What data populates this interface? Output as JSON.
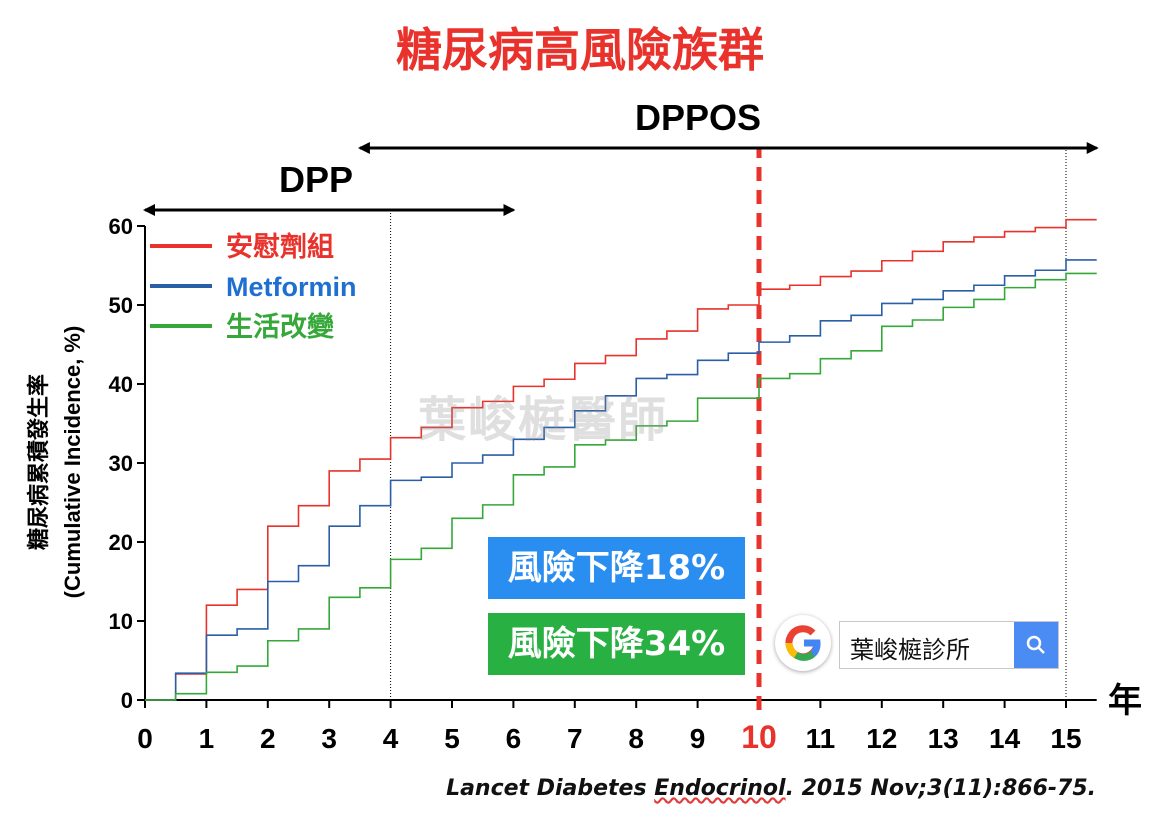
{
  "page_title": "糖尿病高風險族群",
  "watermark": "葉峻榳醫師",
  "badges": {
    "metformin_reduction": "風險下降18%",
    "lifestyle_reduction": "風險下降34%"
  },
  "search": {
    "query": "葉峻榳診所"
  },
  "citation": {
    "prefix": "Lancet Diabetes ",
    "journal_word": "Endocrinol",
    "suffix": ". 2015 Nov;3(11):866-75."
  },
  "colors": {
    "placebo": "#e8322b",
    "metformin": "#2a5fa8",
    "lifestyle": "#36a83a",
    "divider": "#e8322b"
  },
  "chart_data": {
    "type": "line",
    "step": true,
    "ylabel": [
      "糖尿病累積發生率",
      "(Cumulative Incidence, %)"
    ],
    "xlabel": "年",
    "xlim": [
      0,
      15.5
    ],
    "ylim": [
      0,
      60
    ],
    "xticks": [
      0,
      1,
      2,
      3,
      4,
      5,
      6,
      7,
      8,
      9,
      10,
      11,
      12,
      13,
      14,
      15
    ],
    "yticks": [
      0,
      10,
      20,
      30,
      40,
      50,
      60
    ],
    "highlight_x": 10,
    "periods": [
      {
        "label": "DPP",
        "start": 0,
        "end": 6
      },
      {
        "label": "DPPOS",
        "start": 3.5,
        "end": 15.5
      }
    ],
    "vertical_dotted": [
      4,
      15
    ],
    "grid": false,
    "legend_position": "top-left",
    "series": [
      {
        "name": "安慰劑組",
        "color": "#e8322b",
        "x": [
          0,
          0.5,
          1,
          1.5,
          2,
          2.5,
          3,
          3.5,
          4,
          4.5,
          5,
          5.5,
          6,
          6.5,
          7,
          7.5,
          8,
          8.5,
          9,
          9.5,
          10,
          10.5,
          11,
          11.5,
          12,
          12.5,
          13,
          13.5,
          14,
          14.5,
          15,
          15.5
        ],
        "y": [
          0,
          3.3,
          12,
          14,
          22,
          24.6,
          29,
          30.5,
          33.2,
          34.5,
          37,
          37.8,
          39.7,
          40.6,
          42.6,
          43.6,
          45.7,
          46.7,
          49.5,
          50,
          52,
          52.5,
          53.6,
          54.3,
          55.6,
          56.8,
          58,
          58.6,
          59.3,
          59.8,
          60.8,
          60.8
        ]
      },
      {
        "name": "Metformin",
        "color": "#2a5fa8",
        "x": [
          0,
          0.5,
          1,
          1.5,
          2,
          2.5,
          3,
          3.5,
          4,
          4.5,
          5,
          5.5,
          6,
          6.5,
          7,
          7.5,
          8,
          8.5,
          9,
          9.5,
          10,
          10.5,
          11,
          11.5,
          12,
          12.5,
          13,
          13.5,
          14,
          14.5,
          15,
          15.5
        ],
        "y": [
          0,
          3.4,
          8.2,
          9,
          15,
          17,
          22,
          24.6,
          27.8,
          28.2,
          30,
          31,
          33,
          34.5,
          36.6,
          38.5,
          40.7,
          41.2,
          43,
          43.9,
          45.3,
          46.1,
          48,
          48.7,
          50.2,
          50.7,
          51.8,
          52.5,
          53.7,
          54.4,
          55.7,
          55.7
        ]
      },
      {
        "name": "生活改變",
        "color": "#36a83a",
        "x": [
          0,
          0.5,
          1,
          1.5,
          2,
          2.5,
          3,
          3.5,
          4,
          4.5,
          5,
          5.5,
          6,
          6.5,
          7,
          7.5,
          8,
          8.5,
          9,
          9.5,
          10,
          10.5,
          11,
          11.5,
          12,
          12.5,
          13,
          13.5,
          14,
          14.5,
          15,
          15.5
        ],
        "y": [
          0,
          0.8,
          3.5,
          4.3,
          7.5,
          9,
          13,
          14.2,
          17.8,
          19.2,
          23,
          24.7,
          28.5,
          29.5,
          32.3,
          32.9,
          34.7,
          35.3,
          38.2,
          38.2,
          40.7,
          41.3,
          43.2,
          44.2,
          47.3,
          48.1,
          49.7,
          50.7,
          52.2,
          53.2,
          54,
          54
        ]
      }
    ]
  }
}
